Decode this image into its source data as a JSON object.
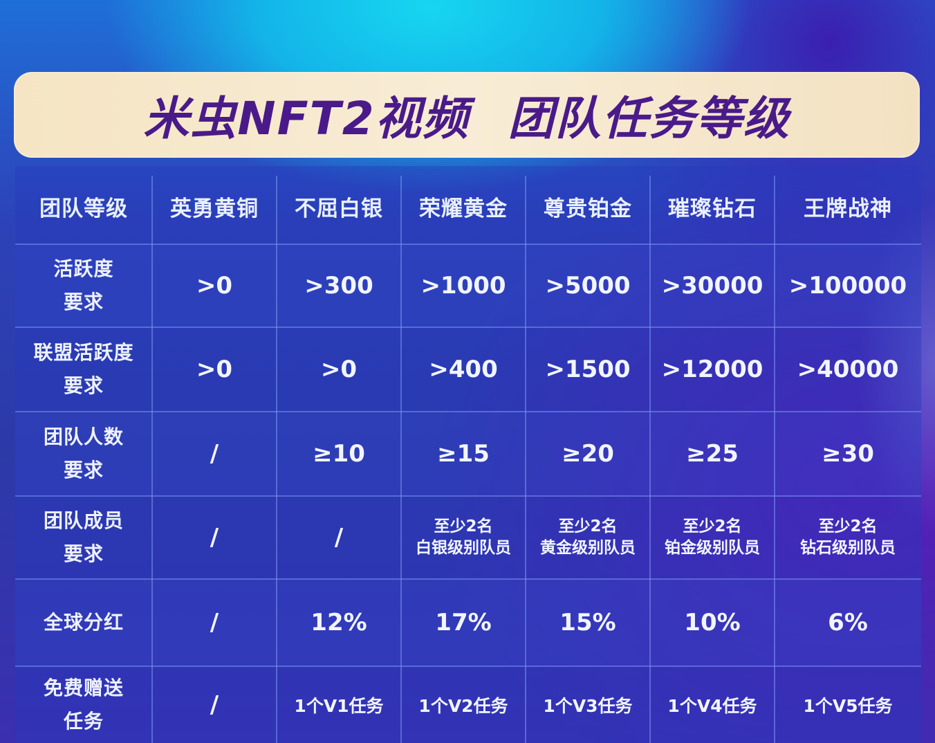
{
  "title": {
    "part1": "米虫NFT2视频",
    "part2": "团队任务等级"
  },
  "table": {
    "header": [
      "团队等级",
      "英勇黄铜",
      "不屈白银",
      "荣耀黄金",
      "尊贵铂金",
      "璀璨钻石",
      "王牌战神"
    ],
    "rows": [
      {
        "label_line1": "活跃度",
        "label_line2": "要求",
        "cells": [
          ">0",
          ">300",
          ">1000",
          ">5000",
          ">30000",
          ">100000"
        ]
      },
      {
        "label_line1": "联盟活跃度",
        "label_line2": "要求",
        "cells": [
          ">0",
          ">0",
          ">400",
          ">1500",
          ">12000",
          ">40000"
        ]
      },
      {
        "label_line1": "团队人数",
        "label_line2": "要求",
        "cells": [
          "/",
          "≥10",
          "≥15",
          "≥20",
          "≥25",
          "≥30"
        ]
      },
      {
        "label_line1": "团队成员",
        "label_line2": "要求",
        "cells": [
          {
            "l1": "/",
            "l2": ""
          },
          {
            "l1": "/",
            "l2": ""
          },
          {
            "l1": "至少2名",
            "l2": "白银级别队员"
          },
          {
            "l1": "至少2名",
            "l2": "黄金级别队员"
          },
          {
            "l1": "至少2名",
            "l2": "铂金级别队员"
          },
          {
            "l1": "至少2名",
            "l2": "钻石级别队员"
          }
        ]
      },
      {
        "label_line1": "全球分红",
        "label_line2": "",
        "cells": [
          "/",
          "12%",
          "17%",
          "15%",
          "10%",
          "6%"
        ]
      },
      {
        "label_line1": "免费赠送",
        "label_line2": "任务",
        "cells": [
          "/",
          "1个V1任务",
          "1个V2任务",
          "1个V3任务",
          "1个V4任务",
          "1个V5任务"
        ]
      }
    ]
  },
  "colors": {
    "title_text": "#4a1a8a",
    "banner": "#f5e5c4",
    "cell_text": "#f2f5ff"
  }
}
